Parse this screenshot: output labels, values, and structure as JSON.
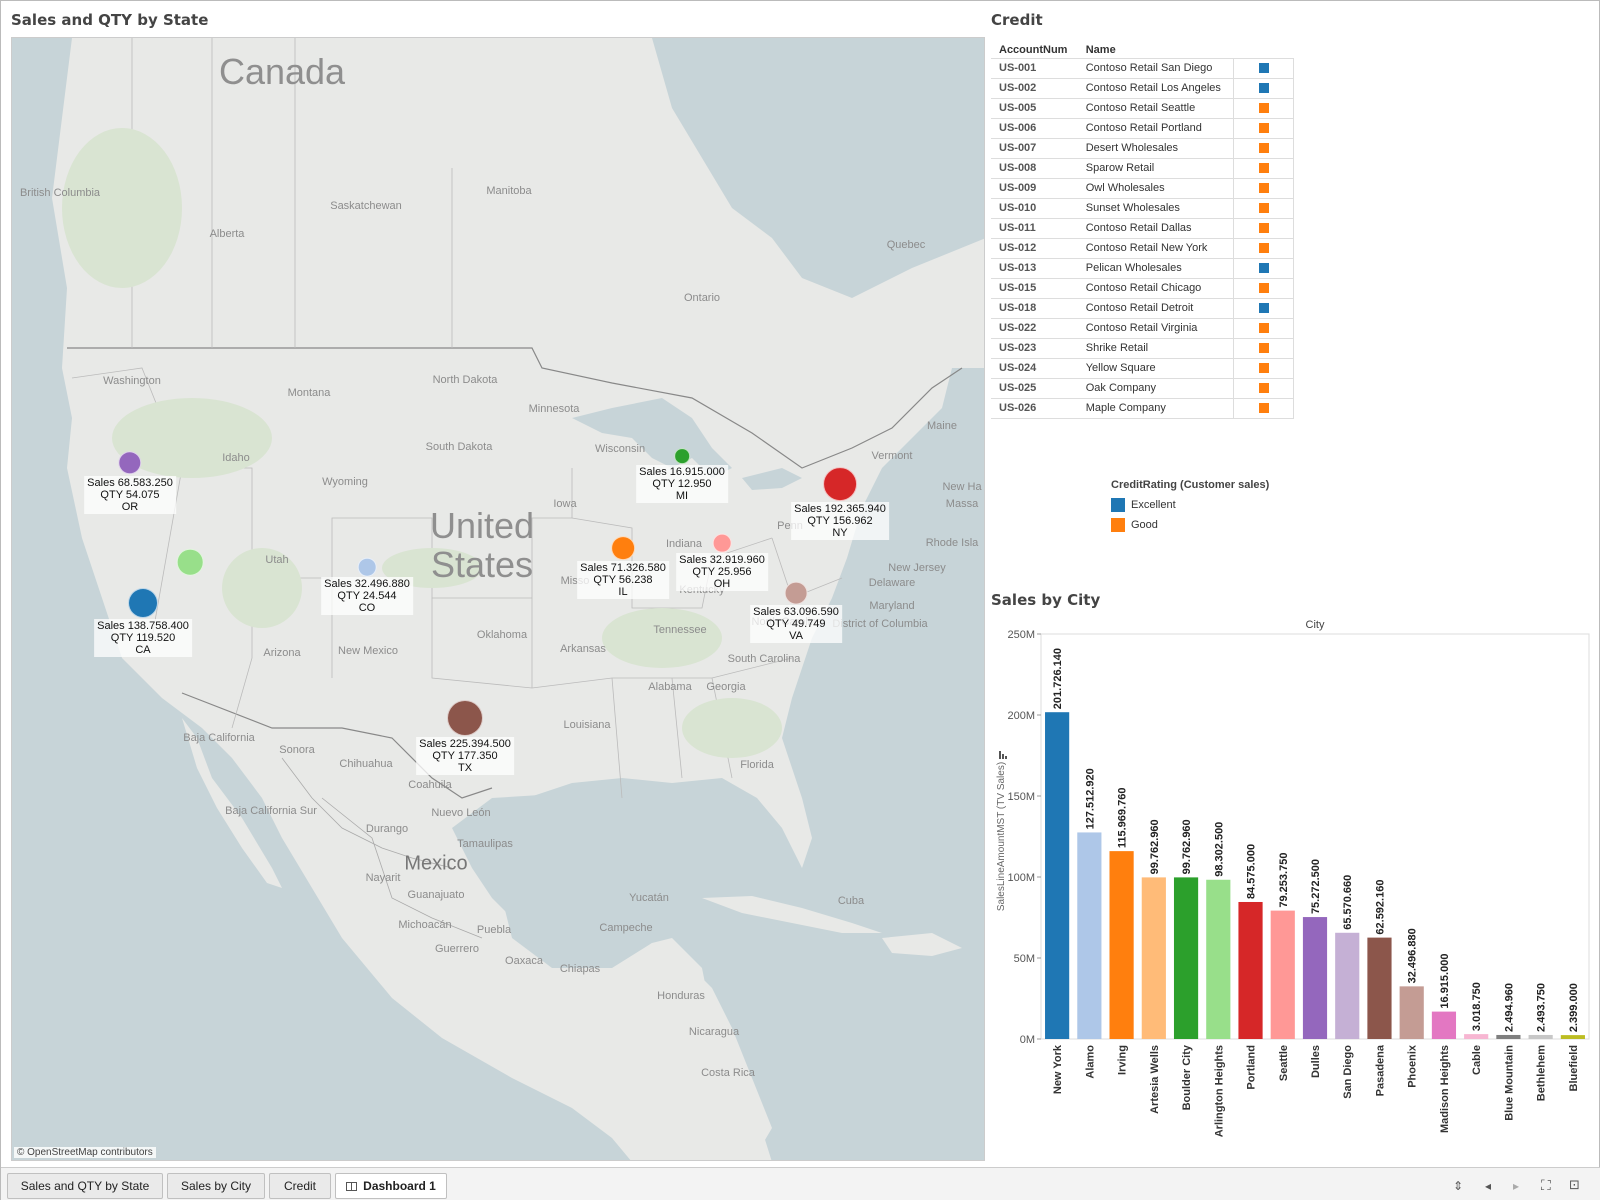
{
  "map_sheet": {
    "title": "Sales and QTY by State",
    "attribution": "© OpenStreetMap contributors",
    "labels": [
      {
        "text": "Canada",
        "kind": "country"
      },
      {
        "text": "United",
        "kind": "country"
      },
      {
        "text": "States",
        "kind": "country"
      },
      {
        "text": "Mexico",
        "kind": "country-mid"
      },
      {
        "text": "British Columbia",
        "kind": "region"
      },
      {
        "text": "Alberta",
        "kind": "region"
      },
      {
        "text": "Saskatchewan",
        "kind": "region"
      },
      {
        "text": "Manitoba",
        "kind": "region"
      },
      {
        "text": "Ontario",
        "kind": "region"
      },
      {
        "text": "Quebec",
        "kind": "region"
      },
      {
        "text": "Washington",
        "kind": "region"
      },
      {
        "text": "Montana",
        "kind": "region"
      },
      {
        "text": "Idaho",
        "kind": "region"
      },
      {
        "text": "Wyoming",
        "kind": "region"
      },
      {
        "text": "North Dakota",
        "kind": "region"
      },
      {
        "text": "South Dakota",
        "kind": "region"
      },
      {
        "text": "Minnesota",
        "kind": "region"
      },
      {
        "text": "Wisconsin",
        "kind": "region"
      },
      {
        "text": "Iowa",
        "kind": "region"
      },
      {
        "text": "Utah",
        "kind": "region"
      },
      {
        "text": "Arizona",
        "kind": "region"
      },
      {
        "text": "New Mexico",
        "kind": "region"
      },
      {
        "text": "Oklahoma",
        "kind": "region"
      },
      {
        "text": "Arkansas",
        "kind": "region"
      },
      {
        "text": "Tennessee",
        "kind": "region"
      },
      {
        "text": "Kentucky",
        "kind": "region"
      },
      {
        "text": "Indiana",
        "kind": "region"
      },
      {
        "text": "Louisiana",
        "kind": "region"
      },
      {
        "text": "Alabama",
        "kind": "region"
      },
      {
        "text": "Georgia",
        "kind": "region"
      },
      {
        "text": "South Carolina",
        "kind": "region"
      },
      {
        "text": "North Carolina",
        "kind": "region"
      },
      {
        "text": "Florida",
        "kind": "region"
      },
      {
        "text": "Penn",
        "kind": "region"
      },
      {
        "text": "Vermont",
        "kind": "region"
      },
      {
        "text": "Maine",
        "kind": "region"
      },
      {
        "text": "New Jersey",
        "kind": "region"
      },
      {
        "text": "Delaware",
        "kind": "region"
      },
      {
        "text": "Maryland",
        "kind": "region"
      },
      {
        "text": "District of Columbia",
        "kind": "region"
      },
      {
        "text": "Rhode Isla",
        "kind": "region"
      },
      {
        "text": "New Ha",
        "kind": "region"
      },
      {
        "text": "Massa",
        "kind": "region"
      },
      {
        "text": "Misso",
        "kind": "region"
      },
      {
        "text": "Sonora",
        "kind": "region"
      },
      {
        "text": "Chihuahua",
        "kind": "region"
      },
      {
        "text": "Coahuila",
        "kind": "region"
      },
      {
        "text": "Baja California",
        "kind": "region"
      },
      {
        "text": "Baja California Sur",
        "kind": "region"
      },
      {
        "text": "Durango",
        "kind": "region"
      },
      {
        "text": "Nuevo León",
        "kind": "region"
      },
      {
        "text": "Tamaulipas",
        "kind": "region"
      },
      {
        "text": "Nayarit",
        "kind": "region"
      },
      {
        "text": "Guanajuato",
        "kind": "region"
      },
      {
        "text": "Michoacán",
        "kind": "region"
      },
      {
        "text": "Puebla",
        "kind": "region"
      },
      {
        "text": "Guerrero",
        "kind": "region"
      },
      {
        "text": "Oaxaca",
        "kind": "region"
      },
      {
        "text": "Chiapas",
        "kind": "region"
      },
      {
        "text": "Yucatán",
        "kind": "region"
      },
      {
        "text": "Campeche",
        "kind": "region"
      },
      {
        "text": "Cuba",
        "kind": "region"
      },
      {
        "text": "Honduras",
        "kind": "region"
      },
      {
        "text": "Nicaragua",
        "kind": "region"
      },
      {
        "text": "Costa Rica",
        "kind": "region"
      }
    ],
    "marks": [
      {
        "state": "OR",
        "sales": "68.583.250",
        "qty": "54.075",
        "color": "#9467bd",
        "sales_value": 68583250
      },
      {
        "state": "CA",
        "sales": "138.758.400",
        "qty": "119.520",
        "color": "#1f77b4",
        "sales_value": 138758400
      },
      {
        "state": "NV",
        "sales": "",
        "qty": "",
        "color": "#98df8a",
        "sales_value": 99762960
      },
      {
        "state": "CO",
        "sales": "32.496.880",
        "qty": "24.544",
        "color": "#aec7e8",
        "sales_value": 32496880
      },
      {
        "state": "TX",
        "sales": "225.394.500",
        "qty": "177.350",
        "color": "#8c564b",
        "sales_value": 225394500
      },
      {
        "state": "IL",
        "sales": "71.326.580",
        "qty": "56.238",
        "color": "#ff7f0e",
        "sales_value": 71326580
      },
      {
        "state": "MI",
        "sales": "16.915.000",
        "qty": "12.950",
        "color": "#2ca02c",
        "sales_value": 16915000
      },
      {
        "state": "OH",
        "sales": "32.919.960",
        "qty": "25.956",
        "color": "#ff9896",
        "sales_value": 32919960
      },
      {
        "state": "VA",
        "sales": "63.096.590",
        "qty": "49.749",
        "color": "#c49c94",
        "sales_value": 63096590
      },
      {
        "state": "NY",
        "sales": "192.365.940",
        "qty": "156.962",
        "color": "#d62728",
        "sales_value": 192365940
      }
    ]
  },
  "credit_sheet": {
    "title": "Credit",
    "columns": [
      "AccountNum",
      "Name"
    ],
    "rows": [
      {
        "acct": "US-001",
        "name": "Contoso Retail San Diego",
        "rating": "Excellent"
      },
      {
        "acct": "US-002",
        "name": "Contoso Retail Los Angeles",
        "rating": "Excellent"
      },
      {
        "acct": "US-005",
        "name": "Contoso Retail Seattle",
        "rating": "Good"
      },
      {
        "acct": "US-006",
        "name": "Contoso Retail Portland",
        "rating": "Good"
      },
      {
        "acct": "US-007",
        "name": "Desert Wholesales",
        "rating": "Good"
      },
      {
        "acct": "US-008",
        "name": "Sparow Retail",
        "rating": "Good"
      },
      {
        "acct": "US-009",
        "name": "Owl Wholesales",
        "rating": "Good"
      },
      {
        "acct": "US-010",
        "name": "Sunset Wholesales",
        "rating": "Good"
      },
      {
        "acct": "US-011",
        "name": "Contoso Retail Dallas",
        "rating": "Good"
      },
      {
        "acct": "US-012",
        "name": "Contoso Retail New York",
        "rating": "Good"
      },
      {
        "acct": "US-013",
        "name": "Pelican Wholesales",
        "rating": "Excellent"
      },
      {
        "acct": "US-015",
        "name": "Contoso Retail Chicago",
        "rating": "Good"
      },
      {
        "acct": "US-018",
        "name": "Contoso Retail Detroit",
        "rating": "Excellent"
      },
      {
        "acct": "US-022",
        "name": "Contoso Retail Virginia",
        "rating": "Good"
      },
      {
        "acct": "US-023",
        "name": "Shrike Retail",
        "rating": "Good"
      },
      {
        "acct": "US-024",
        "name": "Yellow Square",
        "rating": "Good"
      },
      {
        "acct": "US-025",
        "name": "Oak Company",
        "rating": "Good"
      },
      {
        "acct": "US-026",
        "name": "Maple Company",
        "rating": "Good"
      }
    ],
    "legend": {
      "title": "CreditRating (Customer sales)",
      "items": [
        {
          "label": "Excellent",
          "color": "#1f77b4"
        },
        {
          "label": "Good",
          "color": "#ff7f0e"
        }
      ]
    }
  },
  "city_sheet": {
    "title": "Sales by City"
  },
  "chart_data": {
    "type": "bar",
    "title": "Sales by City",
    "column_header": "City",
    "xlabel": "",
    "ylabel": "SalesLineAmountMST (TV Sales)",
    "ylim": [
      0,
      250000000
    ],
    "yticks": [
      0,
      50000000,
      100000000,
      150000000,
      200000000,
      250000000
    ],
    "ytick_labels": [
      "0M",
      "50M",
      "100M",
      "150M",
      "200M",
      "250M"
    ],
    "grid": false,
    "categories": [
      "New York",
      "Alamo",
      "Irving",
      "Artesia Wells",
      "Boulder City",
      "Arlington Heights",
      "Portland",
      "Seattle",
      "Dulles",
      "San Diego",
      "Pasadena",
      "Phoenix",
      "Madison Heights",
      "Cable",
      "Blue Mountain",
      "Bethlehem",
      "Bluefield"
    ],
    "values": [
      201726140,
      127512920,
      115969760,
      99762960,
      99762960,
      98302500,
      84575000,
      79253750,
      75272500,
      65570660,
      62592160,
      32496880,
      16915000,
      3018750,
      2494960,
      2493750,
      2399000
    ],
    "value_labels": [
      "201.726.140",
      "127.512.920",
      "115.969.760",
      "99.762.960",
      "99.762.960",
      "98.302.500",
      "84.575.000",
      "79.253.750",
      "75.272.500",
      "65.570.660",
      "62.592.160",
      "32.496.880",
      "16.915.000",
      "3.018.750",
      "2.494.960",
      "2.493.750",
      "2.399.000"
    ],
    "colors": [
      "#1f77b4",
      "#aec7e8",
      "#ff7f0e",
      "#ffbb78",
      "#2ca02c",
      "#98df8a",
      "#d62728",
      "#ff9896",
      "#9467bd",
      "#c5b0d5",
      "#8c564b",
      "#c49c94",
      "#e377c2",
      "#f7b6d2",
      "#7f7f7f",
      "#c7c7c7",
      "#bcbd22"
    ]
  },
  "tabs": [
    {
      "label": "Sales and QTY by State",
      "active": false
    },
    {
      "label": "Sales by City",
      "active": false
    },
    {
      "label": "Credit",
      "active": false
    },
    {
      "label": "Dashboard 1",
      "active": true
    }
  ]
}
